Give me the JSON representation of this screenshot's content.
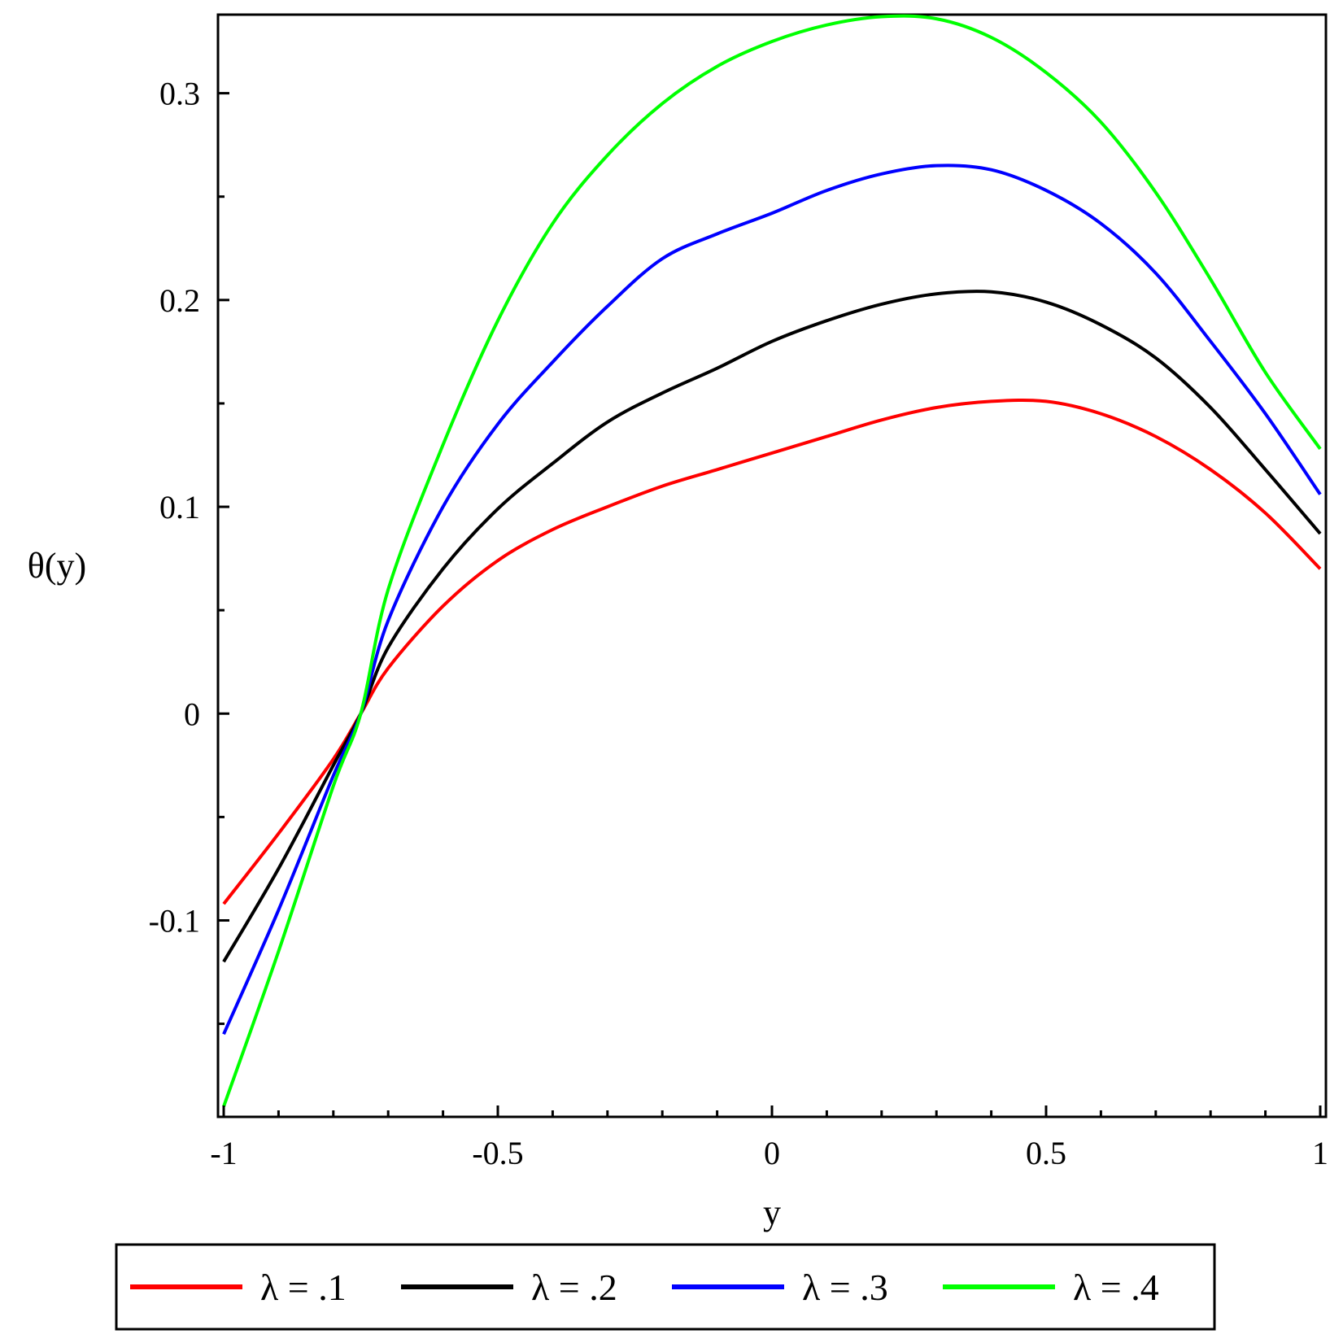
{
  "chart_data": {
    "type": "line",
    "xlabel": "y",
    "ylabel": "θ(y)",
    "xlim": [
      -1,
      1
    ],
    "ylim": [
      -0.195,
      0.338
    ],
    "x_ticks": [
      {
        "value": -1,
        "label": "-1"
      },
      {
        "value": -0.5,
        "label": "-0.5"
      },
      {
        "value": 0,
        "label": "0"
      },
      {
        "value": 0.5,
        "label": "0.5"
      },
      {
        "value": 1,
        "label": "1"
      }
    ],
    "y_ticks": [
      {
        "value": -0.1,
        "label": "-0.1"
      },
      {
        "value": 0,
        "label": "0"
      },
      {
        "value": 0.1,
        "label": "0.1"
      },
      {
        "value": 0.2,
        "label": "0.2"
      },
      {
        "value": 0.3,
        "label": "0.3"
      }
    ],
    "grid": false,
    "legend_position": "bottom",
    "x": [
      -1,
      -0.9,
      -0.8,
      -0.75,
      -0.7,
      -0.6,
      -0.5,
      -0.4,
      -0.3,
      -0.2,
      -0.1,
      0,
      0.1,
      0.2,
      0.3,
      0.4,
      0.5,
      0.6,
      0.7,
      0.8,
      0.9,
      1
    ],
    "series": [
      {
        "name": "λ = .1",
        "color": "#ff0000",
        "values": [
          -0.092,
          -0.058,
          -0.022,
          0.0,
          0.022,
          0.052,
          0.074,
          0.089,
          0.1,
          0.11,
          0.118,
          0.126,
          0.134,
          0.142,
          0.148,
          0.151,
          0.151,
          0.145,
          0.134,
          0.118,
          0.097,
          0.07
        ]
      },
      {
        "name": "λ = .2",
        "color": "#000000",
        "values": [
          -0.12,
          -0.075,
          -0.025,
          0.0,
          0.032,
          0.07,
          0.099,
          0.121,
          0.141,
          0.155,
          0.167,
          0.18,
          0.19,
          0.198,
          0.203,
          0.204,
          0.199,
          0.188,
          0.172,
          0.148,
          0.118,
          0.087
        ]
      },
      {
        "name": "λ = .3",
        "color": "#0000ff",
        "values": [
          -0.155,
          -0.095,
          -0.03,
          0.0,
          0.045,
          0.1,
          0.14,
          0.17,
          0.197,
          0.22,
          0.232,
          0.242,
          0.253,
          0.261,
          0.265,
          0.263,
          0.253,
          0.237,
          0.213,
          0.18,
          0.145,
          0.106
        ]
      },
      {
        "name": "λ = .4",
        "color": "#00ff00",
        "values": [
          -0.19,
          -0.115,
          -0.035,
          0.0,
          0.06,
          0.13,
          0.19,
          0.237,
          0.27,
          0.295,
          0.313,
          0.325,
          0.333,
          0.337,
          0.336,
          0.327,
          0.31,
          0.286,
          0.252,
          0.21,
          0.165,
          0.128
        ]
      }
    ]
  }
}
